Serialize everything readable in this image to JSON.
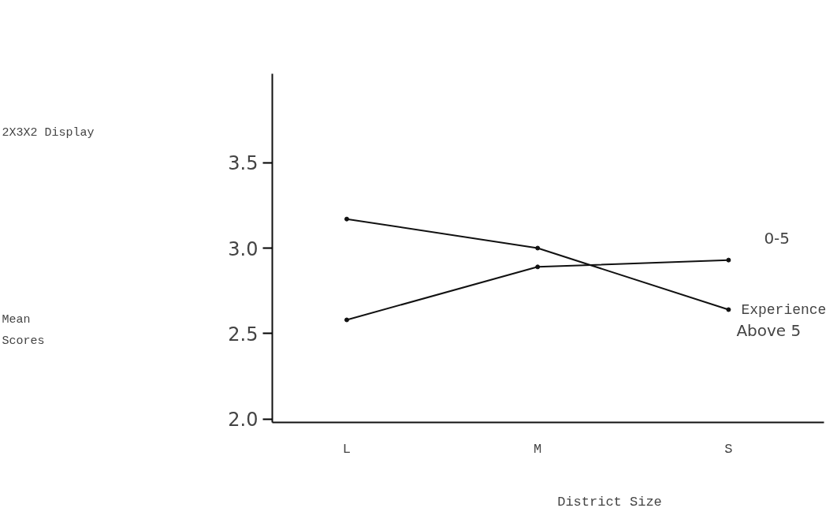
{
  "chart_data": {
    "type": "line",
    "title": "2X3X2 Display",
    "annotations": [
      "Mean Scores"
    ],
    "xlabel": "District Size",
    "legend_title": "Experience",
    "categories": [
      "L",
      "M",
      "S"
    ],
    "series": [
      {
        "name": "Above 5",
        "color": "#111111",
        "values": [
          3.17,
          3.0,
          2.64
        ]
      },
      {
        "name": "0-5",
        "color": "#111111",
        "values": [
          2.58,
          2.89,
          2.93
        ]
      }
    ],
    "ylim": [
      1.98,
      4.02
    ],
    "yticks": [
      {
        "value": 2.0,
        "label": "2.0"
      },
      2.5,
      {
        "value": 3.0,
        "label": "3.0"
      },
      3.5
    ],
    "grid": false,
    "marker": "circle",
    "line_style": "solid"
  }
}
